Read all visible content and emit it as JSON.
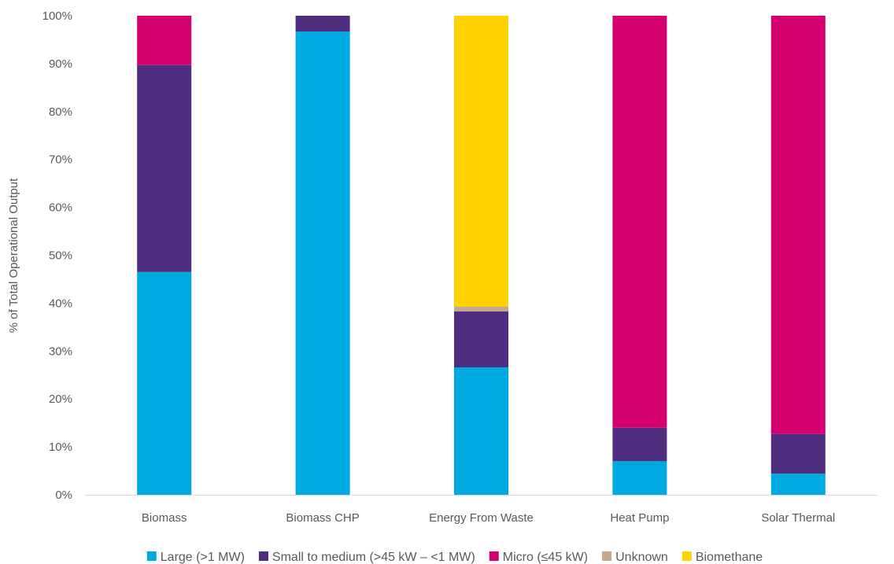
{
  "chart_data": {
    "type": "bar",
    "stacked": true,
    "percent_stacked": true,
    "categories": [
      "Biomass",
      "Biomass CHP",
      "Energy From Waste",
      "Heat Pump",
      "Solar Thermal"
    ],
    "series": [
      {
        "name": "Large (>1 MW)",
        "color": "#00A9E0",
        "values": [
          46.5,
          96.7,
          26.6,
          7.0,
          4.4
        ]
      },
      {
        "name": "Small to medium (>45 kW – <1 MW)",
        "color": "#4F2D7F",
        "values": [
          43.2,
          3.3,
          11.7,
          7.0,
          8.3
        ]
      },
      {
        "name": "Micro (≤45 kW)",
        "color": "#D4006F",
        "values": [
          10.3,
          0,
          0,
          86.0,
          87.3
        ]
      },
      {
        "name": "Unknown",
        "color": "#C4A98B",
        "values": [
          0,
          0,
          1.0,
          0,
          0
        ]
      },
      {
        "name": "Biomethane",
        "color": "#FFD200",
        "values": [
          0,
          0,
          60.7,
          0,
          0
        ]
      }
    ],
    "title": "",
    "xlabel": "",
    "ylabel": "% of Total Operational Output",
    "ylim": [
      0,
      100
    ],
    "yticks": [
      "0%",
      "10%",
      "20%",
      "30%",
      "40%",
      "50%",
      "60%",
      "70%",
      "80%",
      "90%",
      "100%"
    ],
    "grid": false,
    "legend_position": "bottom"
  }
}
